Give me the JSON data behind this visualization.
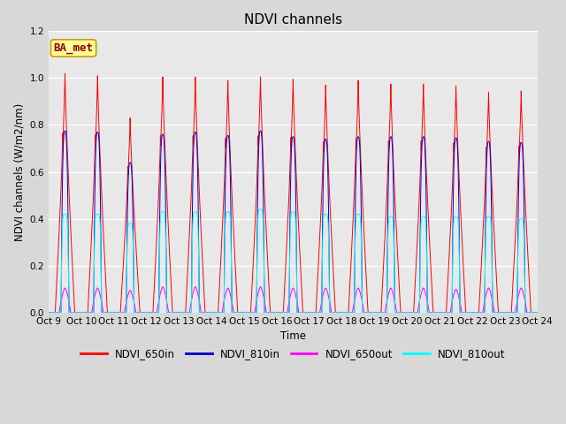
{
  "title": "NDVI channels",
  "ylabel": "NDVI channels (W/m2/nm)",
  "xlabel": "Time",
  "annotation": "BA_met",
  "ylim": [
    0.0,
    1.2
  ],
  "yticks": [
    0.0,
    0.2,
    0.4,
    0.6,
    0.8,
    1.0,
    1.2
  ],
  "xtick_labels": [
    "Oct 9",
    "Oct 10",
    "Oct 11",
    "Oct 12",
    "Oct 13",
    "Oct 14",
    "Oct 15",
    "Oct 16",
    "Oct 17",
    "Oct 18",
    "Oct 19",
    "Oct 20",
    "Oct 21",
    "Oct 22",
    "Oct 23",
    "Oct 24"
  ],
  "num_days": 15,
  "colors": {
    "NDVI_650in": "#ff0000",
    "NDVI_810in": "#0000cc",
    "NDVI_650out": "#ff00ff",
    "NDVI_810out": "#00ffff"
  },
  "legend_labels": [
    "NDVI_650in",
    "NDVI_810in",
    "NDVI_650out",
    "NDVI_810out"
  ],
  "background_color": "#d8d8d8",
  "axes_bg_color": "#e8e8e8",
  "annotation_bg": "#ffff99",
  "annotation_border": "#cc9900",
  "annotation_text_color": "#990000",
  "peak_650in": [
    1.02,
    1.01,
    0.83,
    1.005,
    1.005,
    0.99,
    1.005,
    0.995,
    0.97,
    0.99,
    0.975,
    0.975,
    0.965,
    0.94,
    0.945
  ],
  "peak_810in": [
    0.775,
    0.77,
    0.64,
    0.76,
    0.77,
    0.755,
    0.775,
    0.75,
    0.74,
    0.75,
    0.75,
    0.75,
    0.745,
    0.73,
    0.725
  ],
  "peak_650out": [
    0.105,
    0.105,
    0.095,
    0.11,
    0.11,
    0.105,
    0.11,
    0.105,
    0.105,
    0.105,
    0.105,
    0.105,
    0.1,
    0.105,
    0.105
  ],
  "peak_810out": [
    0.42,
    0.42,
    0.38,
    0.43,
    0.43,
    0.43,
    0.44,
    0.43,
    0.42,
    0.42,
    0.41,
    0.41,
    0.41,
    0.41,
    0.4
  ]
}
